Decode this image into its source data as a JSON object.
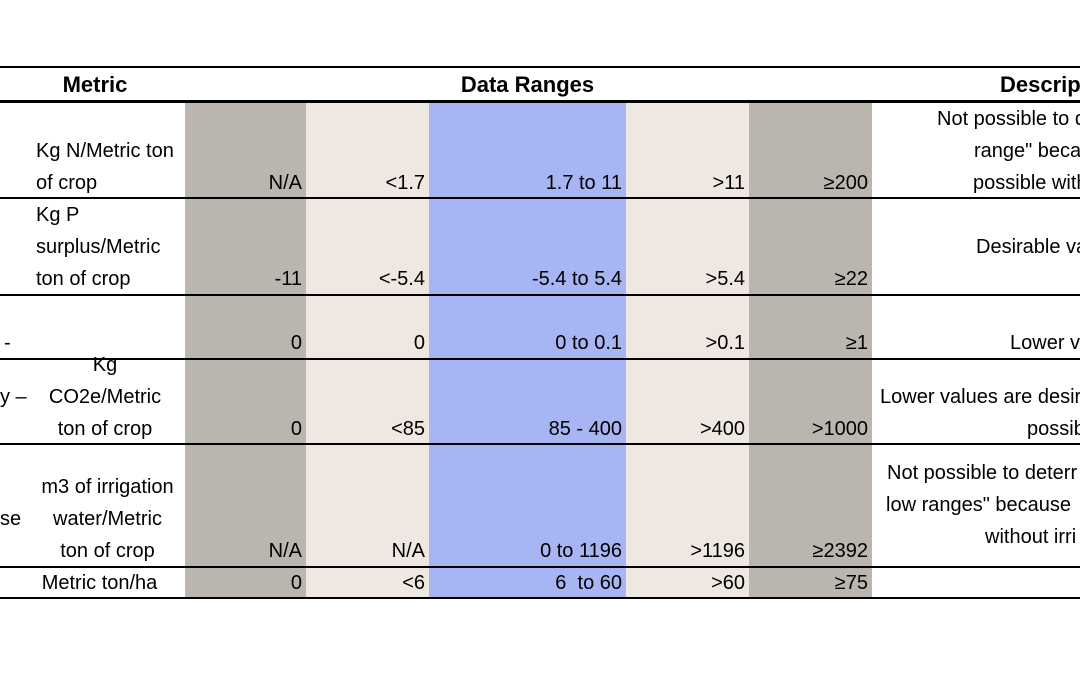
{
  "header": {
    "metric": "Metric",
    "data_ranges": "Data Ranges",
    "description": "Descrip"
  },
  "colors": {
    "gray_band": "#bab6ae",
    "beige_band": "#eee8e0",
    "blue_band": "#a7b5f2"
  },
  "rows": [
    {
      "metric_lines": [],
      "unit_lines": [
        "Kg N/Metric ton",
        "of crop"
      ],
      "values": [
        "N/A",
        "<1.7",
        "1.7 to 11",
        ">11",
        "≥200"
      ],
      "desc_lines": [
        "Not possible to d",
        "range\" because",
        "possible withou"
      ]
    },
    {
      "metric_lines": [],
      "unit_lines": [
        "Kg P",
        "surplus/Metric",
        "ton of crop"
      ],
      "values": [
        "-11",
        "<-5.4",
        "-5.4 to 5.4",
        ">5.4",
        "≥22"
      ],
      "desc_lines": [
        "Desirable va"
      ]
    },
    {
      "metric_lines": [
        "-"
      ],
      "unit_lines": [],
      "values": [
        "0",
        "0",
        "0 to 0.1",
        ">0.1",
        "≥1"
      ],
      "desc_lines": [
        "Lower v"
      ]
    },
    {
      "metric_lines": [
        "y –"
      ],
      "unit_lines": [
        "Kg",
        "CO2e/Metric",
        "ton of crop"
      ],
      "values": [
        "0",
        "<85",
        "85 - 400",
        ">400",
        ">1000"
      ],
      "desc_lines": [
        "Lower values are desir",
        "possib"
      ]
    },
    {
      "metric_lines": [
        "se"
      ],
      "unit_lines": [
        "m3 of irrigation",
        "water/Metric",
        "ton of crop"
      ],
      "values": [
        "N/A",
        "N/A",
        "0 to 1196",
        ">1196",
        "≥2392"
      ],
      "desc_lines": [
        "Not possible to deterr",
        "low ranges\" because",
        "without irri"
      ]
    },
    {
      "metric_lines": [],
      "unit_lines": [
        "Metric ton/ha"
      ],
      "values": [
        "0",
        "<6",
        "6  to 60",
        ">60",
        "≥75"
      ],
      "desc_lines": []
    }
  ]
}
